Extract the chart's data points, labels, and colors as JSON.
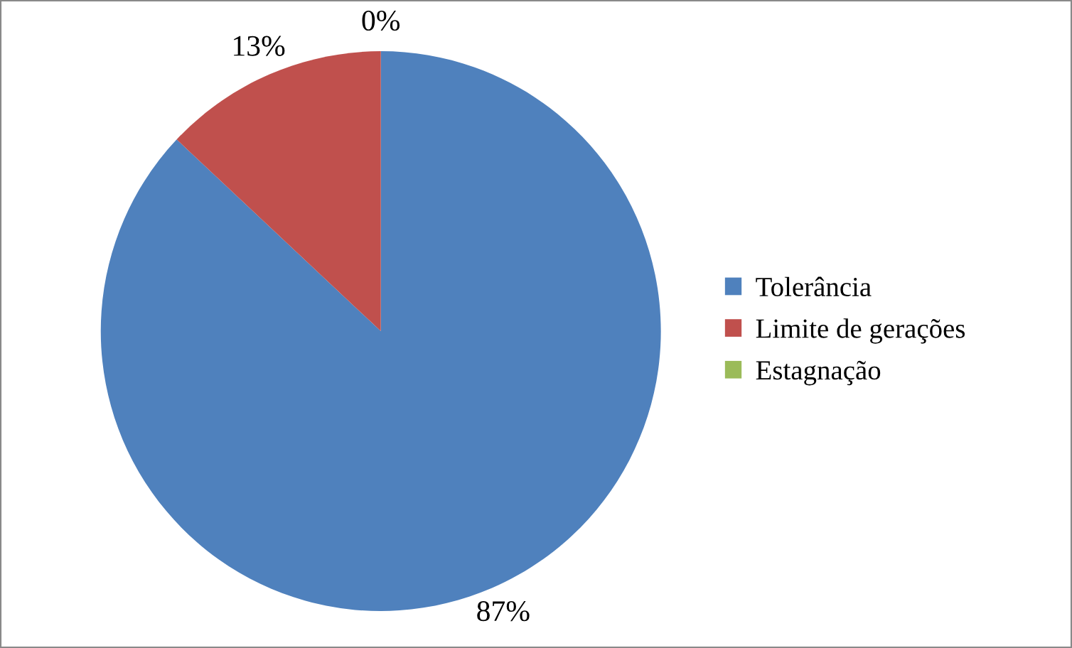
{
  "chart_data": {
    "type": "pie",
    "categories": [
      "Tolerância",
      "Limite de gerações",
      "Estagnação"
    ],
    "values": [
      87,
      13,
      0
    ],
    "colors": [
      "#4f81bd",
      "#c0504d",
      "#9bbb59"
    ],
    "value_labels": [
      "87%",
      "13%",
      "0%"
    ],
    "legend": "right"
  }
}
